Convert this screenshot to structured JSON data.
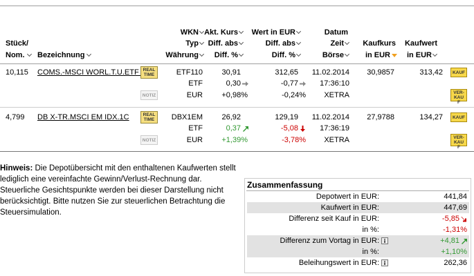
{
  "table": {
    "header": {
      "stueck": [
        "Stück/",
        "Nom."
      ],
      "bezeichnung": [
        "Bezeichnung"
      ],
      "wkn": [
        "WKN",
        "Typ",
        "Währung"
      ],
      "kurs": [
        "Akt. Kurs",
        "Diff. abs",
        "Diff. %"
      ],
      "wert": [
        "Wert in EUR",
        "Diff. abs",
        "Diff. %"
      ],
      "datum": [
        "Datum",
        "Zeit",
        "Börse"
      ],
      "kaufkurs": [
        "Kaufkurs",
        "in EUR"
      ],
      "kaufwert": [
        "Kaufwert",
        "in EUR"
      ]
    },
    "rows": [
      {
        "stueck": "10,115",
        "name": "COMS.-MSCI WORL.T.U.ETF I",
        "realtime": "REAL TIME",
        "notiz": "NOTIZ",
        "wkn": "ETF110",
        "typ": "ETF",
        "waehrung": "EUR",
        "kurs": "30,91",
        "kurs_diff": "0,30",
        "kurs_pct": "+0,98%",
        "wert": "312,65",
        "wert_diff": "-0,77",
        "wert_pct": "-0,24%",
        "datum": "11.02.2014",
        "zeit": "17:36:10",
        "boerse": "XETRA",
        "kaufkurs": "30,9857",
        "kaufwert": "313,42",
        "kauf": "KAUF",
        "verkauf": "VER-KAUF"
      },
      {
        "stueck": "4,799",
        "name": "DB X-TR.MSCI EM IDX.1C",
        "realtime": "REAL TIME",
        "notiz": "NOTIZ",
        "wkn": "DBX1EM",
        "typ": "ETF",
        "waehrung": "EUR",
        "kurs": "26,92",
        "kurs_diff": "0,37",
        "kurs_pct": "+1,39%",
        "wert": "129,19",
        "wert_diff": "-5,08",
        "wert_pct": "-3,78%",
        "datum": "11.02.2014",
        "zeit": "17:36:19",
        "boerse": "XETRA",
        "kaufkurs": "27,9788",
        "kaufwert": "134,27",
        "kauf": "KAUF",
        "verkauf": "VER-KAUF"
      }
    ]
  },
  "hinweis": {
    "label": "Hinweis:",
    "text": "Die Depotübersicht mit den enthaltenen Kaufwerten stellt lediglich eine vereinfachte Gewinn/Verlust-Rechnung dar. Steuerliche Gesichtspunkte werden bei dieser Darstellung nicht berücksichtigt. Bitte nutzen Sie zur steuerlichen Betrachtung die Steuersimulation."
  },
  "summary": {
    "title": "Zusammenfassung",
    "rows": [
      {
        "label": "Depotwert in EUR:",
        "value": "441,84"
      },
      {
        "label": "Kaufwert in EUR:",
        "value": "447,69"
      },
      {
        "label": "Differenz seit Kauf in EUR:",
        "value": "-5,85"
      },
      {
        "label": "in %:",
        "value": "-1,31%"
      },
      {
        "label": "Differenz zum Vortag in EUR:",
        "value": "+4,81"
      },
      {
        "label": "in %:",
        "value": "+1,10%"
      },
      {
        "label": "Beleihungswert in EUR:",
        "value": "262,36"
      }
    ]
  }
}
